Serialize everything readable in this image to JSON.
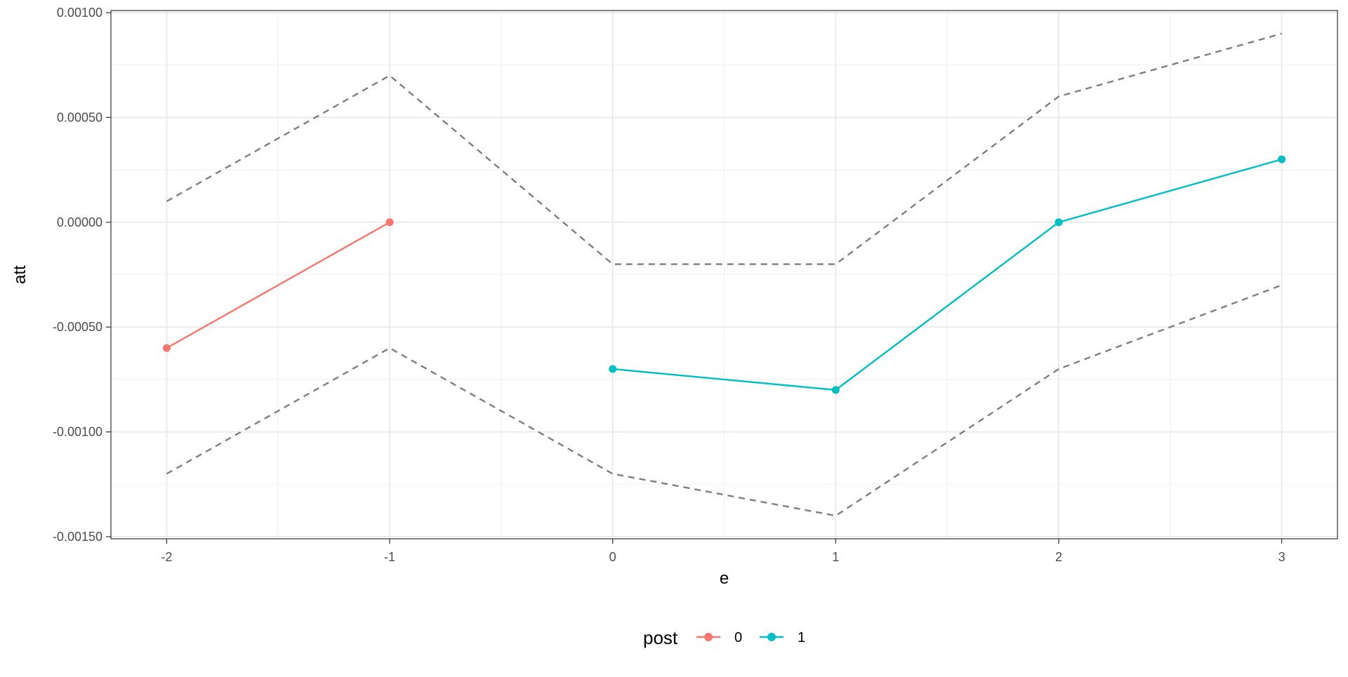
{
  "chart_data": {
    "type": "line",
    "xlabel": "e",
    "ylabel": "att",
    "xlim": [
      -2.25,
      3.25
    ],
    "ylim": [
      -0.00151,
      0.00101
    ],
    "x_ticks": [
      -2,
      -1,
      0,
      1,
      2,
      3
    ],
    "x_tick_labels": [
      "-2",
      "-1",
      "0",
      "1",
      "2",
      "3"
    ],
    "y_ticks": [
      -0.0015,
      -0.001,
      -0.0005,
      0.0,
      0.0005,
      0.001
    ],
    "y_tick_labels": [
      "-0.00150",
      "-0.00100",
      "-0.00050",
      "0.00000",
      "0.00050",
      "0.00100"
    ],
    "grid": true,
    "legend": {
      "title": "post",
      "position": "bottom"
    },
    "series": [
      {
        "name": "0",
        "color": "#F8766D",
        "x": [
          -2,
          -1
        ],
        "values": [
          -0.0006,
          0.0
        ]
      },
      {
        "name": "1",
        "color": "#00BFC4",
        "x": [
          0,
          1,
          2,
          3
        ],
        "values": [
          -0.0007,
          -0.0008,
          0.0,
          0.0003
        ]
      }
    ],
    "confidence_band": {
      "color": "#7f7f7f",
      "style": "dashed",
      "x": [
        -2,
        -1,
        0,
        1,
        2,
        3
      ],
      "upper": [
        0.0001,
        0.0007,
        -0.0002,
        -0.0002,
        0.0006,
        0.0009
      ],
      "lower": [
        -0.0012,
        -0.0006,
        -0.0012,
        -0.0014,
        -0.0007,
        -0.0003
      ]
    }
  }
}
